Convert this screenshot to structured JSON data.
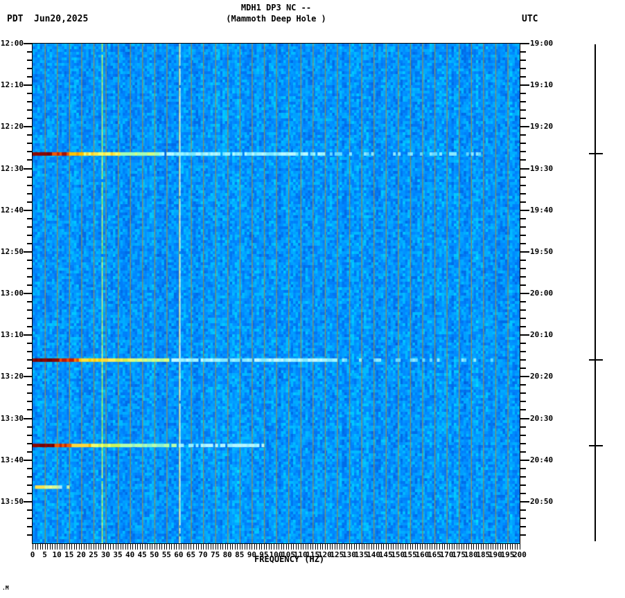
{
  "header": {
    "tz_left": "PDT",
    "date": "Jun20,2025",
    "title_line1": "MDH1 DP3 NC --",
    "title_line2": "(Mammoth Deep Hole )",
    "tz_right": "UTC"
  },
  "footer_artifact": ".M",
  "chart_data": {
    "type": "heatmap",
    "subtype": "seismic-spectrogram",
    "title": "MDH1 DP3 NC -- (Mammoth Deep Hole )",
    "xlabel": "FREQUENCY (HZ)",
    "x_range_hz": [
      0,
      200
    ],
    "x_major_tick_hz": 5,
    "x_minor_tick_hz": 1,
    "x_tick_labels": [
      "0",
      "5",
      "10",
      "15",
      "20",
      "25",
      "30",
      "35",
      "40",
      "45",
      "50",
      "55",
      "60",
      "65",
      "70",
      "75",
      "80",
      "85",
      "90",
      "95",
      "100",
      "105",
      "110",
      "115",
      "120",
      "125",
      "130",
      "135",
      "140",
      "145",
      "150",
      "155",
      "160",
      "165",
      "170",
      "175",
      "180",
      "185",
      "190",
      "195",
      "200"
    ],
    "time_axis_left": {
      "tz": "PDT",
      "start": "12:00",
      "end": "14:00",
      "major_step_min": 10,
      "minor_step_min": 2,
      "labels": [
        "12:00",
        "12:10",
        "12:20",
        "12:30",
        "12:40",
        "12:50",
        "13:00",
        "13:10",
        "13:20",
        "13:30",
        "13:40",
        "13:50"
      ]
    },
    "time_axis_right": {
      "tz": "UTC",
      "start": "19:00",
      "end": "21:00",
      "major_step_min": 10,
      "minor_step_min": 2,
      "labels": [
        "19:00",
        "19:10",
        "19:20",
        "19:30",
        "19:40",
        "19:50",
        "20:00",
        "20:10",
        "20:20",
        "20:30",
        "20:40",
        "20:50"
      ]
    },
    "grid": {
      "vertical_every_hz": 5,
      "colors": [
        "#8c8c5e",
        "#96966a",
        "#7e8a58"
      ]
    },
    "noise_palette": [
      "#0a50c8",
      "#0060dc",
      "#006ce8",
      "#0076f2",
      "#0080fa",
      "#008afe",
      "#0094ff",
      "#00a0ff",
      "#00acff",
      "#00baff",
      "#00c8ff",
      "#00dcff",
      "#28f0ff"
    ],
    "persistent_lines": [
      {
        "hz": 28.5,
        "colors": [
          "#b4f964",
          "#cdfa7a",
          "#9af04e"
        ],
        "density": 0.97
      },
      {
        "hz": 60.4,
        "colors": [
          "#d6ffd8",
          "#e8fff0",
          "#bef8d8"
        ],
        "density": 0.95
      }
    ],
    "events": [
      {
        "time_pdt": "12:26",
        "time_utc": "19:26",
        "minutes_from_start": 26.5,
        "marker_tick": true,
        "segments": [
          {
            "from_hz": 0,
            "to_hz": 8,
            "colors": [
              "#7c0404",
              "#8a0a00"
            ],
            "density": 1
          },
          {
            "from_hz": 8,
            "to_hz": 15,
            "colors": [
              "#c42200",
              "#f05800",
              "#a81400"
            ],
            "density": 1
          },
          {
            "from_hz": 15,
            "to_hz": 21,
            "colors": [
              "#ff9c00",
              "#ffc400"
            ],
            "density": 1
          },
          {
            "from_hz": 21,
            "to_hz": 36,
            "colors": [
              "#ffe84a",
              "#f4ff6e",
              "#ffd22e"
            ],
            "density": 1
          },
          {
            "from_hz": 36,
            "to_hz": 52,
            "colors": [
              "#d2ff82",
              "#a6ffb4"
            ],
            "density": 0.95
          },
          {
            "from_hz": 52,
            "to_hz": 120,
            "colors": [
              "#9cf4ff",
              "#baf8ff",
              "#7ae8ff"
            ],
            "density": 0.85
          },
          {
            "from_hz": 120,
            "to_hz": 185,
            "colors": [
              "#64d8ff",
              "#8ce8ff"
            ],
            "density": 0.35
          }
        ]
      },
      {
        "time_pdt": "13:16",
        "time_utc": "20:16",
        "minutes_from_start": 76.0,
        "marker_tick": true,
        "segments": [
          {
            "from_hz": 0,
            "to_hz": 11,
            "colors": [
              "#700000",
              "#8a0600"
            ],
            "density": 1
          },
          {
            "from_hz": 11,
            "to_hz": 19,
            "colors": [
              "#c41800",
              "#f04800",
              "#ff7a00"
            ],
            "density": 1
          },
          {
            "from_hz": 19,
            "to_hz": 29,
            "colors": [
              "#ffd200",
              "#ffe23c"
            ],
            "density": 1
          },
          {
            "from_hz": 29,
            "to_hz": 40,
            "colors": [
              "#ffee5a",
              "#d8ee4a",
              "#ffd83a"
            ],
            "density": 1
          },
          {
            "from_hz": 40,
            "to_hz": 56,
            "colors": [
              "#e2ff7a",
              "#b4ffa0"
            ],
            "density": 0.95
          },
          {
            "from_hz": 56,
            "to_hz": 125,
            "colors": [
              "#a0f6ff",
              "#c2faff",
              "#84eaff"
            ],
            "density": 0.9
          },
          {
            "from_hz": 125,
            "to_hz": 190,
            "colors": [
              "#6adcff",
              "#92ecff"
            ],
            "density": 0.4
          }
        ]
      },
      {
        "time_pdt": "13:36",
        "time_utc": "20:36",
        "minutes_from_start": 96.5,
        "marker_tick": true,
        "segments": [
          {
            "from_hz": 0,
            "to_hz": 9,
            "colors": [
              "#780202",
              "#8c0800"
            ],
            "density": 1
          },
          {
            "from_hz": 9,
            "to_hz": 16,
            "colors": [
              "#ca2600",
              "#f25e00"
            ],
            "density": 1
          },
          {
            "from_hz": 16,
            "to_hz": 24,
            "colors": [
              "#ffb400",
              "#ffd83c"
            ],
            "density": 1
          },
          {
            "from_hz": 24,
            "to_hz": 36,
            "colors": [
              "#f2ff6e",
              "#cdf55a"
            ],
            "density": 1
          },
          {
            "from_hz": 36,
            "to_hz": 60,
            "colors": [
              "#b8ffaa",
              "#92f2d0"
            ],
            "density": 0.9
          },
          {
            "from_hz": 60,
            "to_hz": 95,
            "colors": [
              "#96f0ff",
              "#b6f6ff"
            ],
            "density": 0.6
          }
        ]
      },
      {
        "time_pdt": "13:46",
        "time_utc": "20:46",
        "minutes_from_start": 106.5,
        "marker_tick": false,
        "segments": [
          {
            "from_hz": 1,
            "to_hz": 5,
            "colors": [
              "#ffe44e",
              "#fff27e"
            ],
            "density": 1
          },
          {
            "from_hz": 5,
            "to_hz": 10,
            "colors": [
              "#f6ff8c",
              "#d8fa96"
            ],
            "density": 1
          },
          {
            "from_hz": 10,
            "to_hz": 15,
            "colors": [
              "#baf0b4",
              "#a0e8ff"
            ],
            "density": 0.8
          }
        ]
      }
    ],
    "marker_axis": {
      "side": "right",
      "description": "vertical event-marker line with ticks at detected events"
    }
  }
}
